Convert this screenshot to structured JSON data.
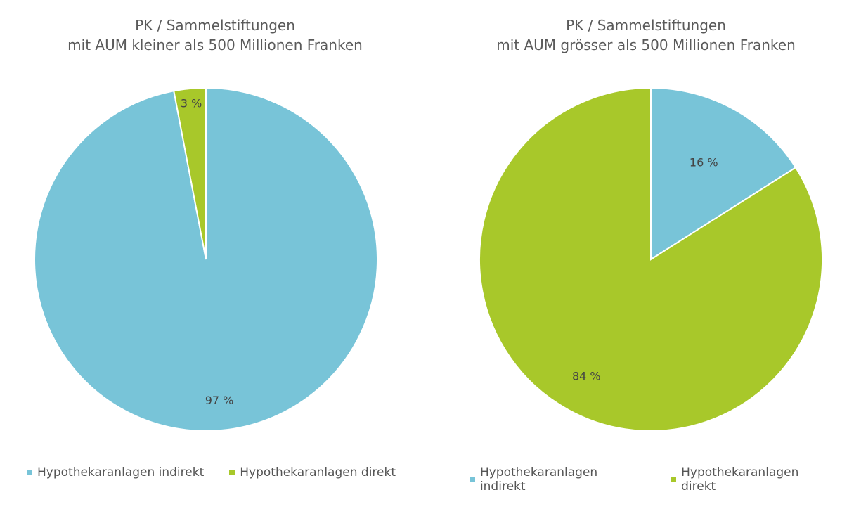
{
  "chart_data": [
    {
      "type": "pie",
      "title_line1": "PK / Sammelstiftungen",
      "title_line2": "mit AUM kleiner als 500 Millionen Franken",
      "slices": [
        {
          "name": "Hypothekaranlagen indirekt",
          "value": 97,
          "label": "97 %",
          "color": "#78c4d8"
        },
        {
          "name": "Hypothekaranlagen direkt",
          "value": 3,
          "label": "3 %",
          "color": "#a8c82a"
        }
      ]
    },
    {
      "type": "pie",
      "title_line1": "PK / Sammelstiftungen",
      "title_line2": "mit AUM grösser als 500 Millionen Franken",
      "slices": [
        {
          "name": "Hypothekaranlagen indirekt",
          "value": 16,
          "label": "16 %",
          "color": "#78c4d8"
        },
        {
          "name": "Hypothekaranlagen direkt",
          "value": 84,
          "label": "84 %",
          "color": "#a8c82a"
        }
      ]
    }
  ]
}
